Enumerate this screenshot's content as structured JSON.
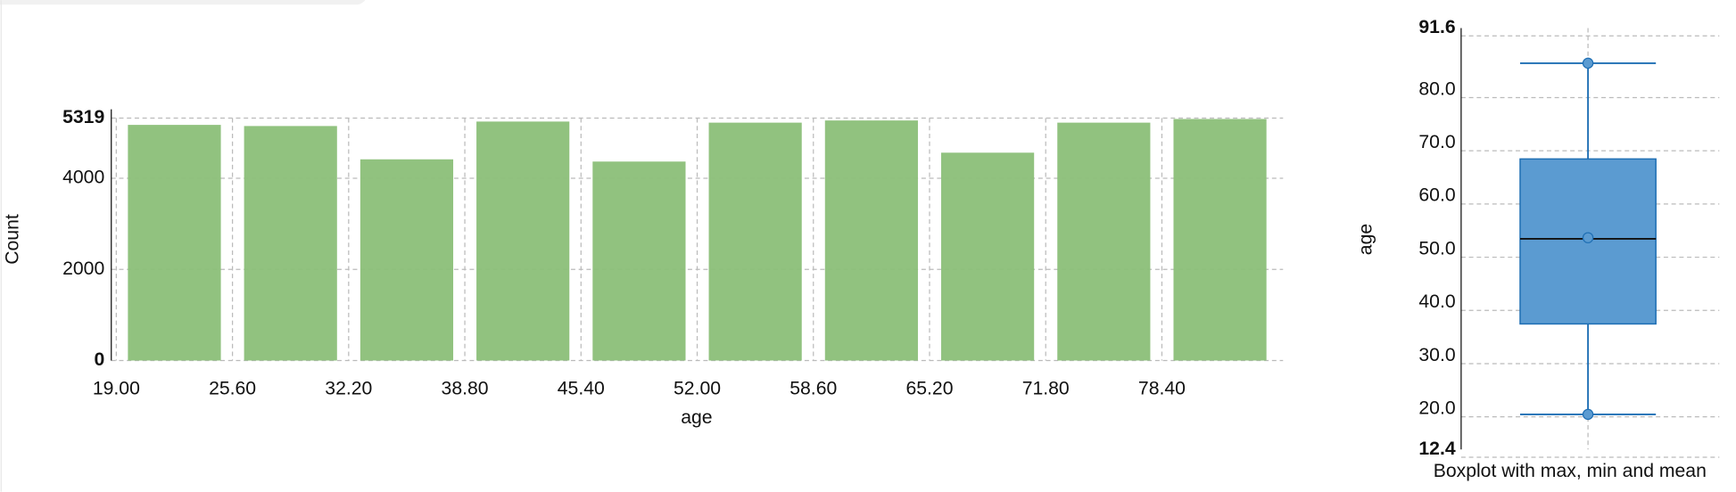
{
  "chart_data": [
    {
      "type": "histogram",
      "bins": [
        19,
        25.6,
        32.2,
        38.8,
        45.4,
        52,
        58.6,
        65.2,
        71.8,
        78.4,
        85
      ],
      "values": [
        5171,
        5146,
        4415,
        5244,
        4366,
        5220,
        5268,
        4561,
        5220,
        5300
      ],
      "color": "#8bbf78",
      "xlabel": "age",
      "ylabel": "Count",
      "xlim": [
        19,
        85
      ],
      "ylim": [
        0,
        5319
      ],
      "xticks": [
        {
          "value": 19,
          "label": "19.00"
        },
        {
          "value": 25.6,
          "label": "25.60"
        },
        {
          "value": 32.2,
          "label": "32.20"
        },
        {
          "value": 38.8,
          "label": "38.80"
        },
        {
          "value": 45.4,
          "label": "45.40"
        },
        {
          "value": 52,
          "label": "52.00"
        },
        {
          "value": 58.6,
          "label": "58.60"
        },
        {
          "value": 65.2,
          "label": "65.20"
        },
        {
          "value": 71.8,
          "label": "71.80"
        },
        {
          "value": 78.4,
          "label": "78.40"
        }
      ],
      "yticks": [
        0,
        2000,
        4000,
        5319
      ],
      "grid": true
    },
    {
      "type": "box",
      "min": 19,
      "q1": 36,
      "median": 52,
      "q3": 67,
      "max": 85,
      "mean": 52.2,
      "color": "#5b9bd1",
      "line_color": "#1f6fb4",
      "ylabel": "age",
      "xlabel": "Boxplot with max, min and mean",
      "ylim": [
        12.4,
        91.6
      ],
      "yticks": [
        {
          "value": 12.4,
          "label": "12.4"
        },
        {
          "value": 20,
          "label": "20.0"
        },
        {
          "value": 30,
          "label": "30.0"
        },
        {
          "value": 40,
          "label": "40.0"
        },
        {
          "value": 50,
          "label": "50.0"
        },
        {
          "value": 60,
          "label": "60.0"
        },
        {
          "value": 70,
          "label": "70.0"
        },
        {
          "value": 80,
          "label": "80.0"
        },
        {
          "value": 91.6,
          "label": "91.6"
        }
      ],
      "grid": true
    }
  ]
}
